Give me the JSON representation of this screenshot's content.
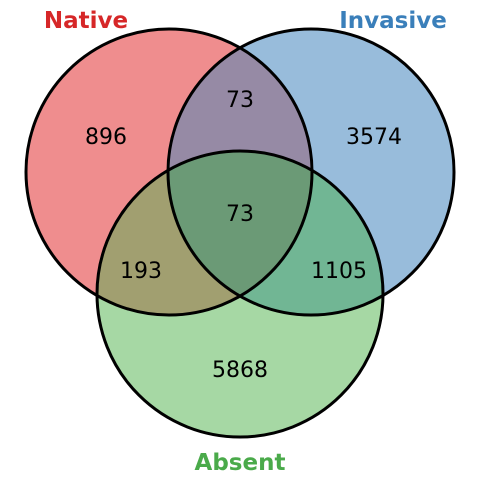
{
  "sets": [
    {
      "key": "native",
      "name": "Native",
      "label_color": "#d62728",
      "fill": "#ef8d8e"
    },
    {
      "key": "invasive",
      "name": "Invasive",
      "label_color": "#3a7fba",
      "fill": "#98bcdb"
    },
    {
      "key": "absent",
      "name": "Absent",
      "label_color": "#4aaa4a",
      "fill": "#a6d8a4"
    }
  ],
  "regions": {
    "native_only": "896",
    "invasive_only": "3574",
    "absent_only": "5868",
    "native_invasive": "73",
    "native_absent": "193",
    "invasive_absent": "1105",
    "all_three": "73"
  },
  "region_colors": {
    "native_invasive": "#968aa5",
    "native_absent": "#a19f70",
    "invasive_absent": "#71b694",
    "all_three": "#6b9a76"
  }
}
